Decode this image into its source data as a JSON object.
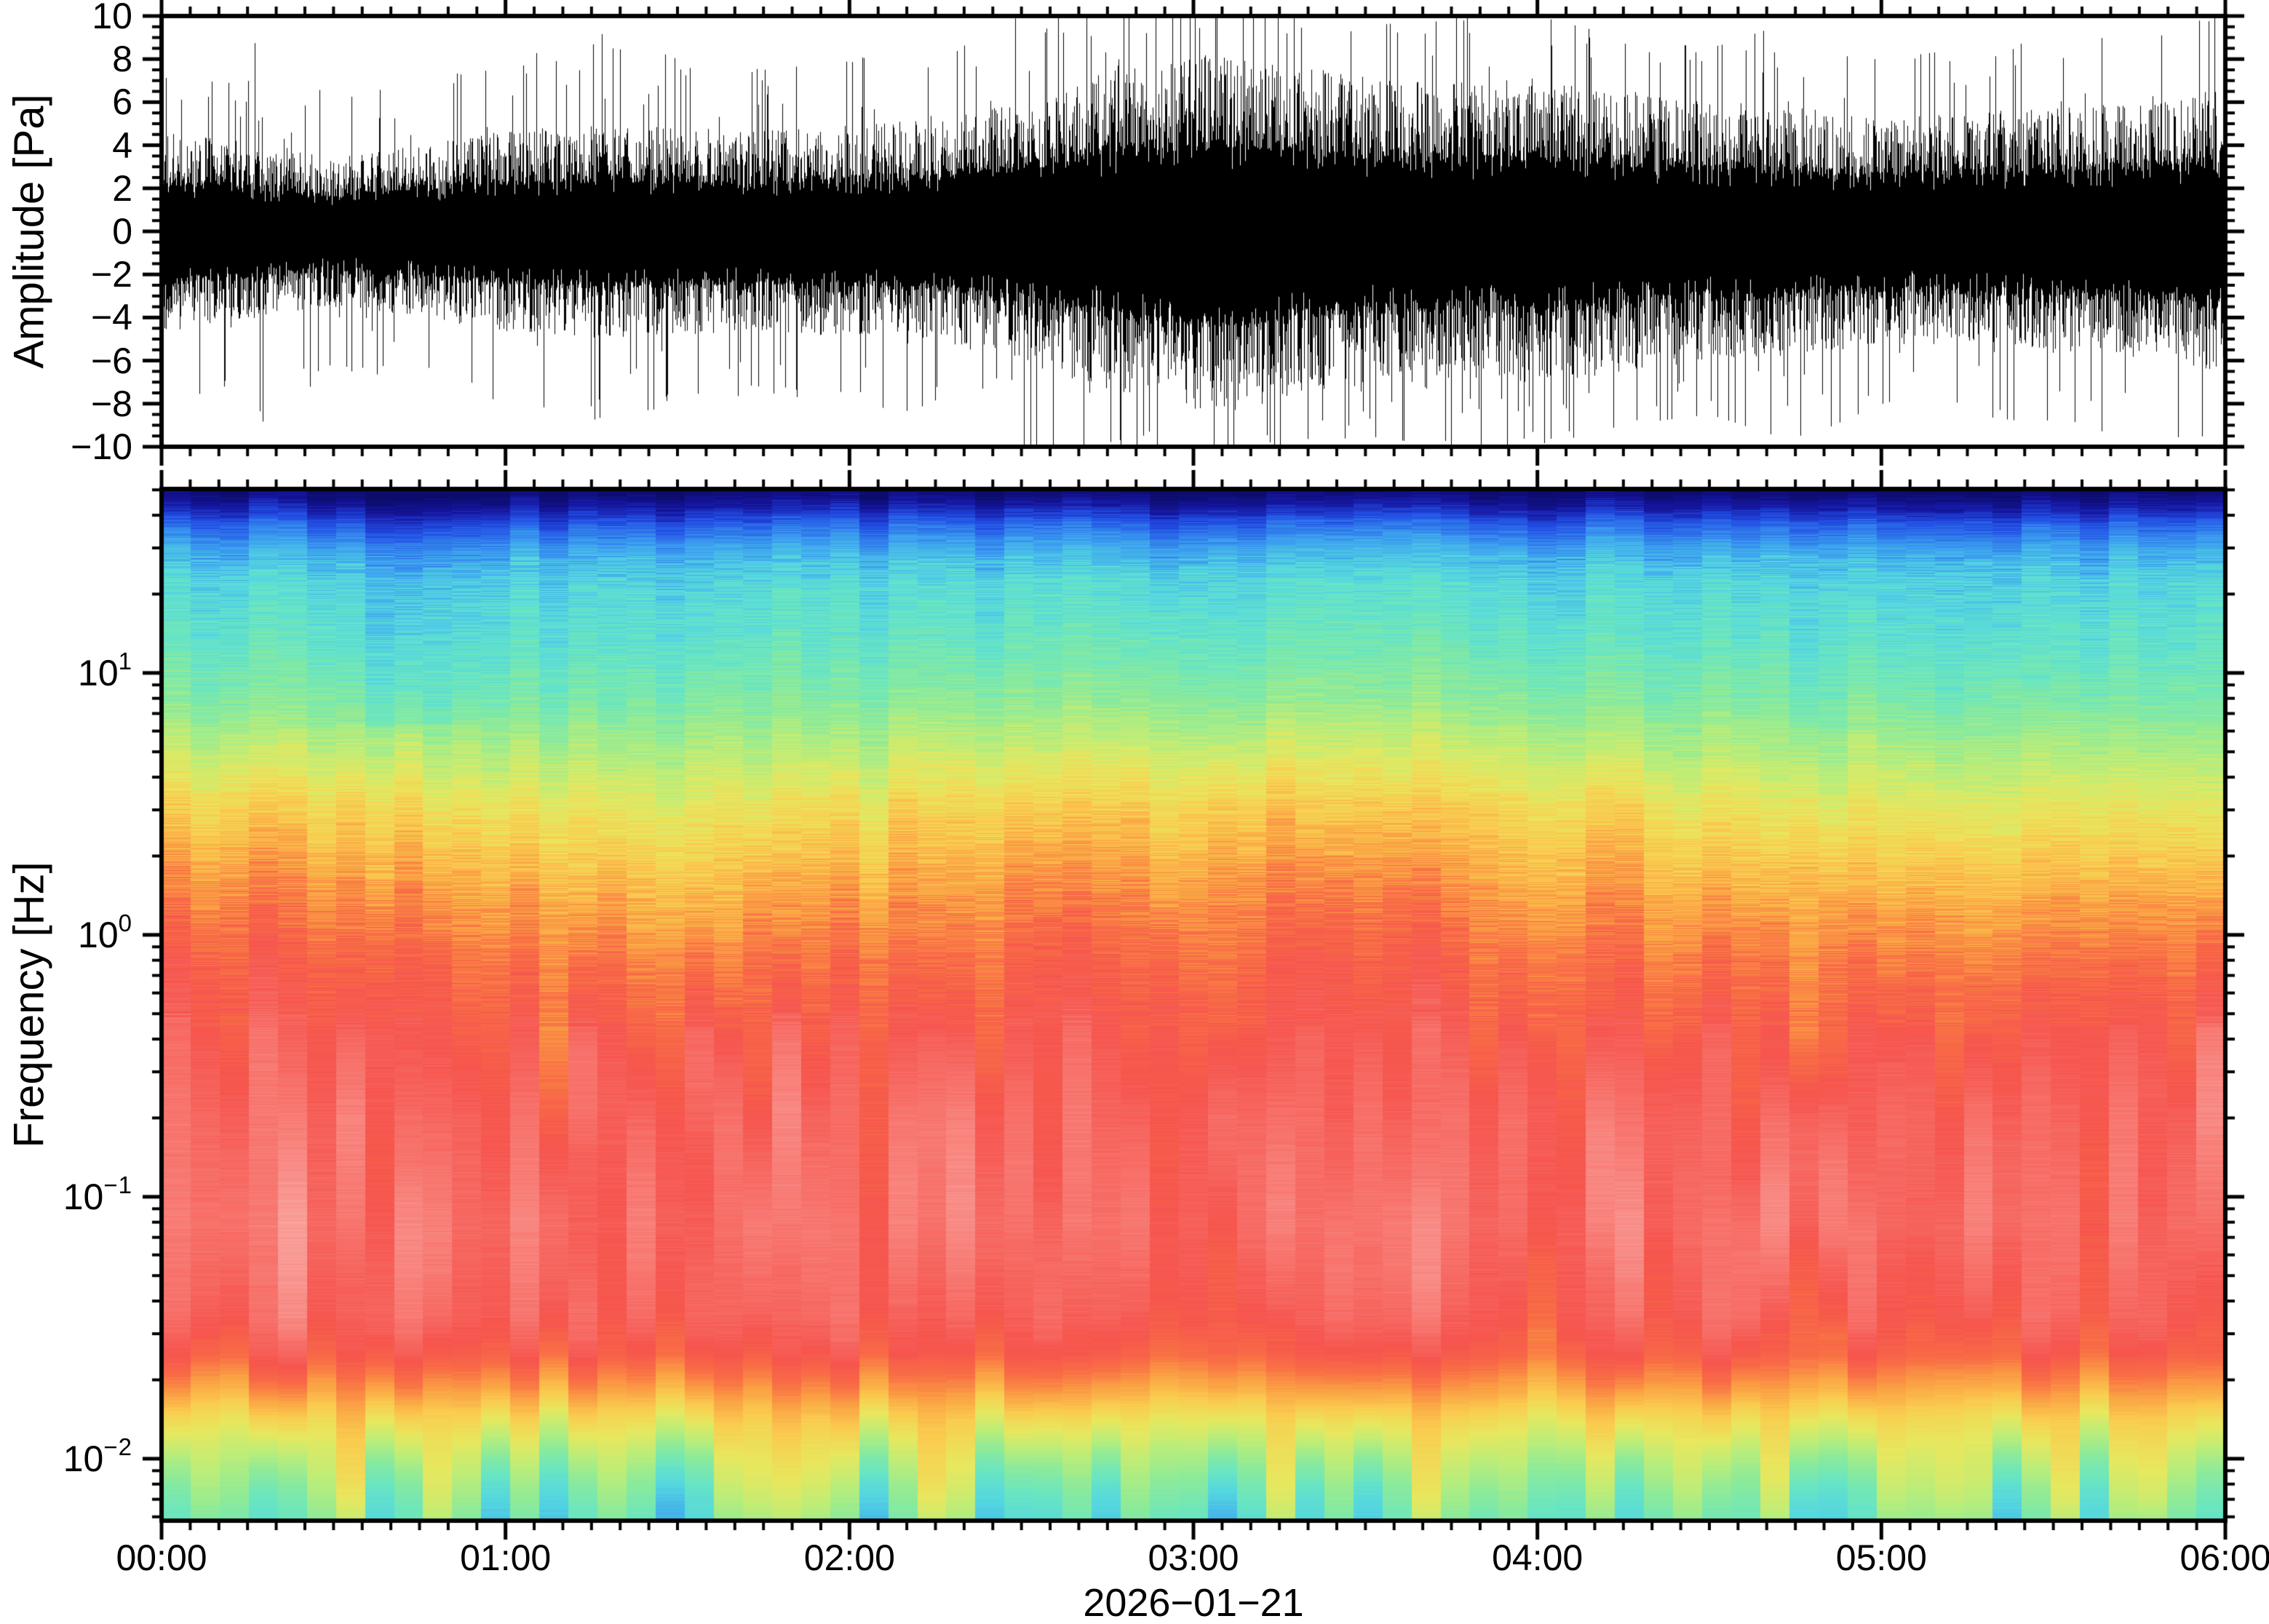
{
  "labels": {
    "amplitude_axis": "Amplitude [Pa]",
    "frequency_axis": "Frequency [Hz]",
    "date": "2026−01−21"
  },
  "colors": {
    "waveform": "#000000",
    "frame": "#000000",
    "background": "#ffffff"
  },
  "chart_data": [
    {
      "type": "line",
      "title": "",
      "ylabel": "Amplitude [Pa]",
      "ylim": [
        -10,
        10
      ],
      "y_major_tick_step": 2,
      "y_minor_tick_step": 0.5,
      "y_ticks": [
        {
          "value": 10,
          "label": "10"
        },
        {
          "value": 8,
          "label": "8"
        },
        {
          "value": 6,
          "label": "6"
        },
        {
          "value": 4,
          "label": "4"
        },
        {
          "value": 2,
          "label": "2"
        },
        {
          "value": 0,
          "label": "0"
        },
        {
          "value": -2,
          "label": "−2"
        },
        {
          "value": -4,
          "label": "−4"
        },
        {
          "value": -6,
          "label": "−6"
        },
        {
          "value": -8,
          "label": "−8"
        },
        {
          "value": -10,
          "label": "−10"
        }
      ],
      "x_range_hours": [
        0,
        6
      ],
      "x_minor_tick_minutes": 5,
      "x_ticks": [
        {
          "hour": 0,
          "label": "00:00"
        },
        {
          "hour": 1,
          "label": "01:00"
        },
        {
          "hour": 2,
          "label": "02:00"
        },
        {
          "hour": 3,
          "label": "03:00"
        },
        {
          "hour": 4,
          "label": "04:00"
        },
        {
          "hour": 5,
          "label": "05:00"
        },
        {
          "hour": 6,
          "label": "06:00"
        }
      ],
      "xlabel_date": "2026−01−21",
      "line_color": "#000000",
      "waveform_envelope": {
        "comment": "broadband infrasound noise, zero-mean; rms core and max spike amplitude in Pa vs time",
        "time_hours": [
          0,
          0.25,
          0.5,
          0.75,
          1,
          1.25,
          1.5,
          1.75,
          2,
          2.25,
          2.5,
          2.75,
          3,
          3.25,
          3.5,
          3.75,
          4,
          4.25,
          4.5,
          4.75,
          5,
          5.25,
          5.5,
          5.75,
          6
        ],
        "rms_pa": [
          1.7,
          1.5,
          1.25,
          1.45,
          1.7,
          1.8,
          1.75,
          1.7,
          1.8,
          1.9,
          2.2,
          2.7,
          3.0,
          2.9,
          2.6,
          2.5,
          2.6,
          2.4,
          2.2,
          2.1,
          1.9,
          2.0,
          2.1,
          2.2,
          2.4
        ],
        "peak_pa": [
          7,
          9.5,
          6.5,
          7,
          8,
          9.5,
          8,
          7.5,
          8,
          8.5,
          10,
          10,
          10,
          10,
          9.5,
          10,
          10,
          9,
          8.5,
          9.8,
          8,
          8.5,
          9,
          9.5,
          10
        ]
      }
    },
    {
      "type": "heatmap",
      "title": "",
      "ylabel": "Frequency [Hz]",
      "yscale": "log",
      "ylim_hz": [
        0.0058,
        50.4
      ],
      "y_ticks": [
        {
          "hz": 10,
          "mantissa": "10",
          "exponent": "1"
        },
        {
          "hz": 1,
          "mantissa": "10",
          "exponent": "0"
        },
        {
          "hz": 0.1,
          "mantissa": "10",
          "exponent": "−1"
        },
        {
          "hz": 0.01,
          "mantissa": "10",
          "exponent": "−2"
        }
      ],
      "x_range_hours": [
        0,
        6
      ],
      "time_bins": 71,
      "legend": "none",
      "grid": false,
      "colormap_stops": [
        {
          "v": 0.0,
          "color": "#0a0a5f"
        },
        {
          "v": 0.07,
          "color": "#1616a0"
        },
        {
          "v": 0.13,
          "color": "#2350e6"
        },
        {
          "v": 0.2,
          "color": "#3ca0f0"
        },
        {
          "v": 0.27,
          "color": "#55d7e1"
        },
        {
          "v": 0.33,
          "color": "#69e6c3"
        },
        {
          "v": 0.4,
          "color": "#8ceb9b"
        },
        {
          "v": 0.47,
          "color": "#beee78"
        },
        {
          "v": 0.53,
          "color": "#e8e85f"
        },
        {
          "v": 0.59,
          "color": "#facd50"
        },
        {
          "v": 0.65,
          "color": "#fba044"
        },
        {
          "v": 0.7,
          "color": "#f96e46"
        },
        {
          "v": 0.75,
          "color": "#f6554e"
        },
        {
          "v": 0.82,
          "color": "#f87a73"
        },
        {
          "v": 0.89,
          "color": "#faa5a0"
        },
        {
          "v": 0.95,
          "color": "#fccdc8"
        },
        {
          "v": 1.0,
          "color": "#fee9e6"
        }
      ],
      "freq_profile": {
        "comment": "relative PSD level (0=lowest/navy, 1=highest/white-pink) vs log10(frequency)",
        "log10_hz": [
          1.703,
          1.64,
          1.57,
          1.47,
          1.35,
          1.1,
          0.9,
          0.7,
          0.5,
          0.3,
          0.1,
          -0.1,
          -0.4,
          -0.7,
          -1.1,
          -1.45,
          -1.6,
          -1.73,
          -1.85,
          -2.0,
          -2.12,
          -2.24
        ],
        "level": [
          0.01,
          0.07,
          0.14,
          0.21,
          0.27,
          0.31,
          0.36,
          0.44,
          0.52,
          0.58,
          0.64,
          0.69,
          0.745,
          0.78,
          0.8,
          0.77,
          0.73,
          0.65,
          0.56,
          0.47,
          0.41,
          0.36
        ]
      },
      "time_enhancement": {
        "comment": "broad energy dome at 2-6 Hz centered near 03:10, plus elevated levels at the 00:00 edge and a cooler column near 00:43",
        "dome_center_hour": 3.2,
        "dome_sigma_hours": 1.1,
        "dome_log10hz_center": 0.55,
        "dome_amount": 0.06,
        "edge_amount": 0.05,
        "cool_column_hour": 0.72,
        "cool_column_amount": -0.05
      }
    }
  ]
}
